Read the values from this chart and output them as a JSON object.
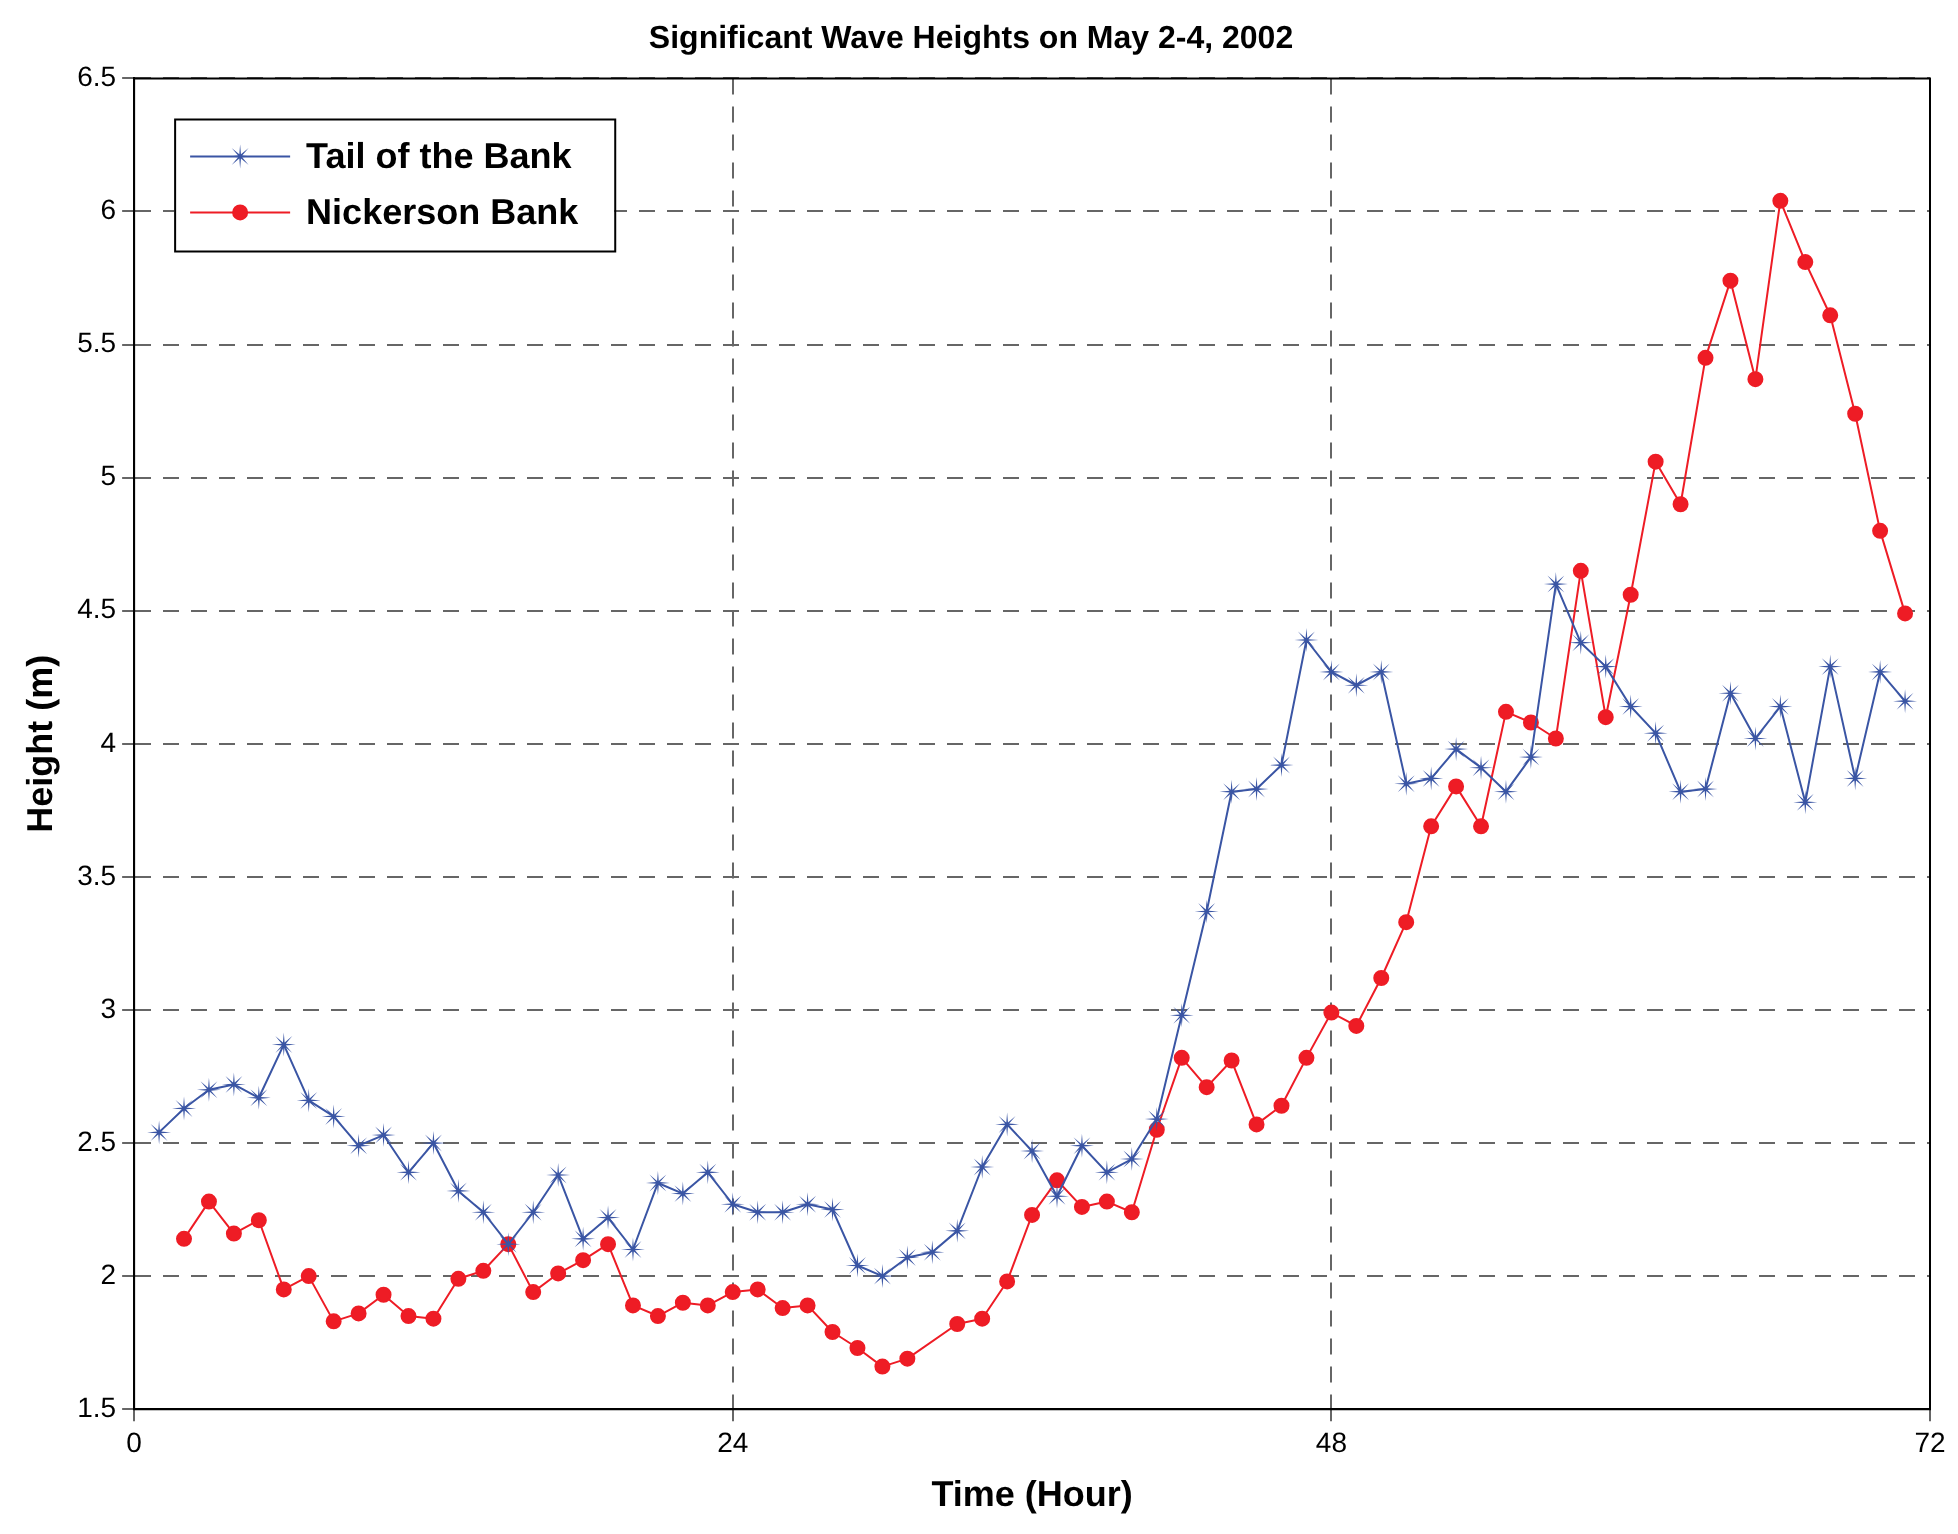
{
  "chart_data": {
    "type": "line",
    "title": "Significant Wave Heights on May 2-4, 2002",
    "xlabel": "Time (Hour)",
    "ylabel": "Height (m)",
    "xlim": [
      0,
      72
    ],
    "xticks": [
      0,
      24,
      48,
      72
    ],
    "ylim": [
      1.5,
      6.5
    ],
    "yticks": [
      1.5,
      2,
      2.5,
      3,
      3.5,
      4,
      4.5,
      5,
      5.5,
      6,
      6.5
    ],
    "grid": true,
    "legend": "top left",
    "line_style": "solid",
    "series": [
      {
        "name": "Tail of the Bank",
        "color": "#3a55a4",
        "marker": "star",
        "x": [
          1,
          2,
          3,
          4,
          5,
          6,
          7,
          8,
          9,
          10,
          11,
          12,
          13,
          14,
          15,
          16,
          17,
          18,
          19,
          20,
          21,
          22,
          23,
          24,
          25,
          26,
          27,
          28,
          29,
          30,
          31,
          32,
          33,
          34,
          35,
          36,
          37,
          38,
          39,
          40,
          41,
          42,
          43,
          44,
          45,
          46,
          47,
          48,
          49,
          50,
          51,
          52,
          53,
          54,
          55,
          56,
          57,
          58,
          59,
          60,
          61,
          62,
          63,
          64,
          65,
          66,
          67,
          68,
          69,
          70,
          71
        ],
        "values": [
          2.54,
          2.63,
          2.7,
          2.72,
          2.67,
          2.87,
          2.66,
          2.6,
          2.49,
          2.53,
          2.39,
          2.5,
          2.32,
          2.24,
          2.12,
          2.24,
          2.38,
          2.14,
          2.22,
          2.1,
          2.35,
          2.31,
          2.39,
          2.27,
          2.24,
          2.24,
          2.27,
          2.25,
          2.04,
          2.0,
          2.07,
          2.09,
          2.17,
          2.41,
          2.57,
          2.47,
          2.3,
          2.49,
          2.39,
          2.44,
          2.59,
          2.98,
          3.37,
          3.82,
          3.83,
          3.92,
          4.39,
          4.27,
          4.22,
          4.27,
          3.85,
          3.87,
          3.98,
          3.91,
          3.82,
          3.95,
          4.6,
          4.38,
          4.29,
          4.14,
          4.04,
          3.82,
          3.83,
          4.19,
          4.02,
          4.14,
          3.78,
          4.29,
          3.87,
          4.27,
          4.16
        ]
      },
      {
        "name": "Nickerson Bank",
        "color": "#ee1c25",
        "marker": "circle",
        "x": [
          2,
          3,
          4,
          5,
          6,
          7,
          8,
          9,
          10,
          11,
          12,
          13,
          14,
          15,
          16,
          17,
          18,
          19,
          20,
          21,
          22,
          23,
          24,
          25,
          26,
          27,
          28,
          29,
          30,
          31,
          33,
          34,
          35,
          36,
          37,
          38,
          39,
          40,
          41,
          42,
          43,
          44,
          45,
          46,
          47,
          48,
          49,
          50,
          51,
          52,
          53,
          54,
          55,
          56,
          57,
          58,
          59,
          60,
          61,
          62,
          63,
          64,
          65,
          66,
          67,
          68,
          69,
          70,
          71
        ],
        "values": [
          2.14,
          2.28,
          2.16,
          2.21,
          1.95,
          2.0,
          1.83,
          1.86,
          1.93,
          1.85,
          1.84,
          1.99,
          2.02,
          2.12,
          1.94,
          2.01,
          2.06,
          2.12,
          1.89,
          1.85,
          1.9,
          1.89,
          1.94,
          1.95,
          1.88,
          1.89,
          1.79,
          1.73,
          1.66,
          1.69,
          1.82,
          1.84,
          1.98,
          2.23,
          2.36,
          2.26,
          2.28,
          2.24,
          2.55,
          2.82,
          2.71,
          2.81,
          2.57,
          2.64,
          2.82,
          2.99,
          2.94,
          3.12,
          3.33,
          3.69,
          3.84,
          3.69,
          4.12,
          4.08,
          4.02,
          4.65,
          4.1,
          4.56,
          5.06,
          4.9,
          5.45,
          5.74,
          5.37,
          6.04,
          5.81,
          5.61,
          5.24,
          4.8,
          4.49
        ]
      }
    ]
  }
}
